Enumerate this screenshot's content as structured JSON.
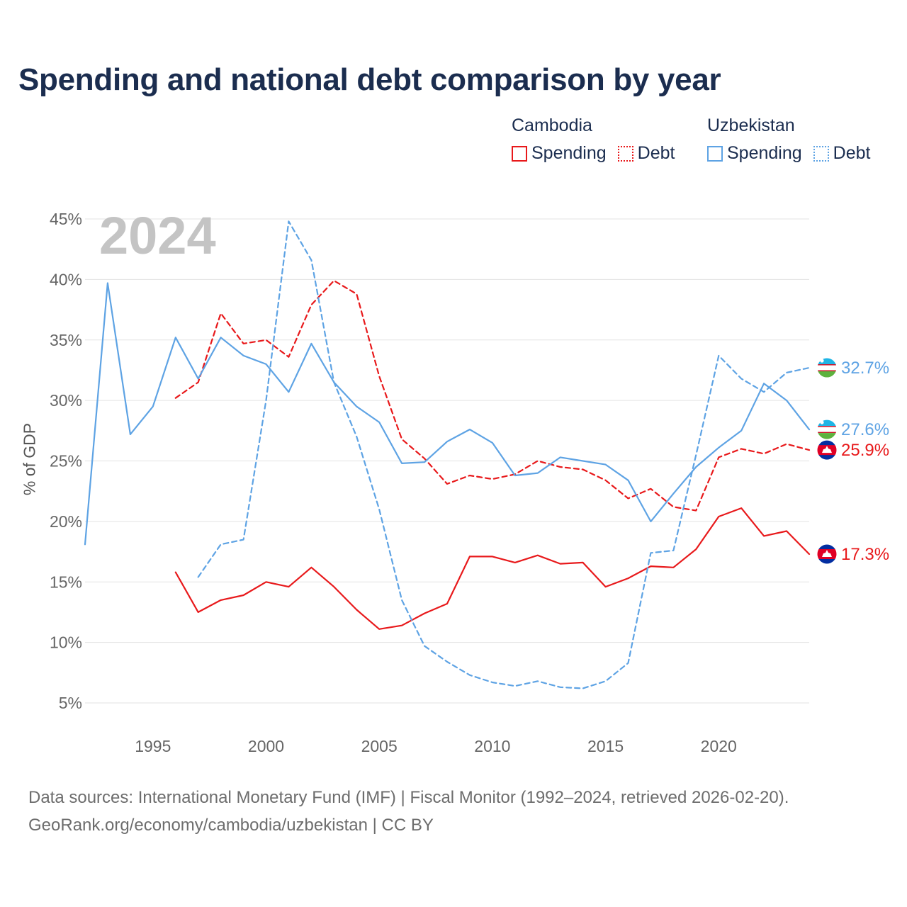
{
  "title": "Spending and national debt comparison by year",
  "year_watermark": "2024",
  "legend": {
    "groups": [
      {
        "name": "Cambodia",
        "items": [
          {
            "label": "Spending",
            "style": "solid",
            "color": "#e8191b"
          },
          {
            "label": "Debt",
            "style": "dotted",
            "color": "#e8191b"
          }
        ]
      },
      {
        "name": "Uzbekistan",
        "items": [
          {
            "label": "Spending",
            "style": "solid",
            "color": "#5ea3e4"
          },
          {
            "label": "Debt",
            "style": "dotted",
            "color": "#5ea3e4"
          }
        ]
      }
    ]
  },
  "footer": {
    "line1": "Data sources: International Monetary Fund (IMF) | Fiscal Monitor (1992–2024, retrieved 2026-02-20).",
    "line2": "GeoRank.org/economy/cambodia/uzbekistan | CC BY"
  },
  "chart_data": {
    "type": "line",
    "title": "Spending and national debt comparison by year",
    "xlabel": "",
    "ylabel": "% of GDP",
    "xlim": [
      1992,
      2024
    ],
    "ylim": [
      3,
      46
    ],
    "x_ticks": [
      1995,
      2000,
      2005,
      2010,
      2015,
      2020
    ],
    "y_ticks": [
      {
        "value": 5,
        "label": "5%"
      },
      {
        "value": 10,
        "label": "10%"
      },
      {
        "value": 15,
        "label": "15%"
      },
      {
        "value": 20,
        "label": "20%"
      },
      {
        "value": 25,
        "label": "25%"
      },
      {
        "value": 30,
        "label": "30%"
      },
      {
        "value": 35,
        "label": "35%"
      },
      {
        "value": 40,
        "label": "40%"
      },
      {
        "value": 45,
        "label": "45%"
      }
    ],
    "grid": true,
    "series": [
      {
        "name": "Cambodia Spending",
        "country": "Cambodia",
        "color": "#e8191b",
        "dashed": false,
        "start_year": 1996,
        "values": [
          15.8,
          12.5,
          13.5,
          13.9,
          15.0,
          14.6,
          16.2,
          14.6,
          12.7,
          11.1,
          11.4,
          12.4,
          13.2,
          17.1,
          17.1,
          16.6,
          17.2,
          16.5,
          16.6,
          14.6,
          15.3,
          16.3,
          16.2,
          17.7,
          20.4,
          21.1,
          18.8,
          19.2,
          17.3
        ],
        "end_label": "17.3%"
      },
      {
        "name": "Cambodia Debt",
        "country": "Cambodia",
        "color": "#e8191b",
        "dashed": true,
        "start_year": 1996,
        "values": [
          30.2,
          31.5,
          37.2,
          34.7,
          35.0,
          33.6,
          37.9,
          39.9,
          38.8,
          32.0,
          26.8,
          25.2,
          23.1,
          23.8,
          23.5,
          23.9,
          25.0,
          24.5,
          24.3,
          23.4,
          21.9,
          22.7,
          21.2,
          20.9,
          25.3,
          26.0,
          25.6,
          26.4,
          25.9
        ],
        "end_label": "25.9%"
      },
      {
        "name": "Uzbekistan Spending",
        "country": "Uzbekistan",
        "color": "#5ea3e4",
        "dashed": false,
        "start_year": 1992,
        "values": [
          18.1,
          39.7,
          27.2,
          29.5,
          35.2,
          31.8,
          35.2,
          33.7,
          33.0,
          30.7,
          34.7,
          31.5,
          29.5,
          28.2,
          24.8,
          24.9,
          26.6,
          27.6,
          26.5,
          23.8,
          24.0,
          25.3,
          25.0,
          24.7,
          23.4,
          20.0,
          22.3,
          24.5,
          26.1,
          27.5,
          31.4,
          30.0,
          27.6
        ],
        "end_label": "27.6%"
      },
      {
        "name": "Uzbekistan Debt",
        "country": "Uzbekistan",
        "color": "#5ea3e4",
        "dashed": true,
        "start_year": 1997,
        "values": [
          15.4,
          18.1,
          18.5,
          30.0,
          44.8,
          41.6,
          31.5,
          27.0,
          21.0,
          13.5,
          9.7,
          8.4,
          7.3,
          6.7,
          6.4,
          6.8,
          6.3,
          6.2,
          6.8,
          8.3,
          17.4,
          17.6,
          25.5,
          33.7,
          31.8,
          30.7,
          32.3,
          32.7
        ],
        "end_label": "32.7%"
      }
    ]
  }
}
